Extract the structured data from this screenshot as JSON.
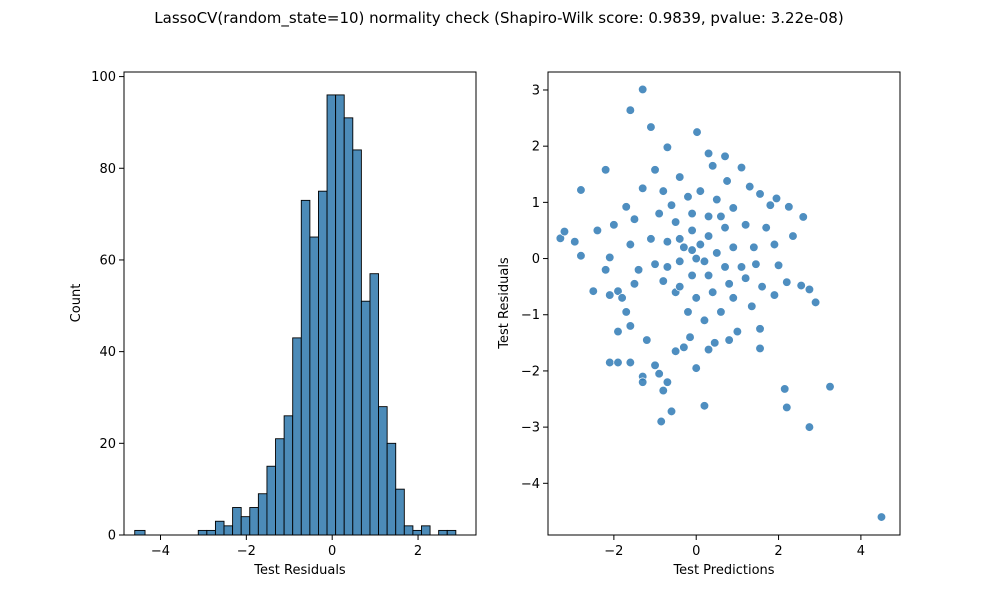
{
  "title": "LassoCV(random_state=10) normality check (Shapiro-Wilk score: 0.9839, pvalue: 3.22e-08)",
  "colors": {
    "bar": "#4c8bb8",
    "point": "#2f7ab5",
    "edge": "#000000"
  },
  "chart_data": [
    {
      "type": "bar",
      "subtype": "histogram",
      "xlabel": "Test Residuals",
      "ylabel": "Count",
      "xlim": [
        -4.85,
        3.35
      ],
      "ylim": [
        0,
        101
      ],
      "xticks": [
        -4,
        -2,
        0,
        2
      ],
      "yticks": [
        0,
        20,
        40,
        60,
        80,
        100
      ],
      "bins": [
        {
          "x0": -4.6,
          "x1": -4.36,
          "count": 1
        },
        {
          "x0": -3.12,
          "x1": -2.92,
          "count": 1
        },
        {
          "x0": -2.92,
          "x1": -2.72,
          "count": 1
        },
        {
          "x0": -2.72,
          "x1": -2.52,
          "count": 3
        },
        {
          "x0": -2.52,
          "x1": -2.32,
          "count": 2
        },
        {
          "x0": -2.32,
          "x1": -2.12,
          "count": 6
        },
        {
          "x0": -2.12,
          "x1": -1.92,
          "count": 4
        },
        {
          "x0": -1.92,
          "x1": -1.72,
          "count": 6
        },
        {
          "x0": -1.72,
          "x1": -1.52,
          "count": 9
        },
        {
          "x0": -1.52,
          "x1": -1.32,
          "count": 15
        },
        {
          "x0": -1.32,
          "x1": -1.12,
          "count": 21
        },
        {
          "x0": -1.12,
          "x1": -0.92,
          "count": 26
        },
        {
          "x0": -0.92,
          "x1": -0.72,
          "count": 43
        },
        {
          "x0": -0.72,
          "x1": -0.52,
          "count": 73
        },
        {
          "x0": -0.52,
          "x1": -0.32,
          "count": 65
        },
        {
          "x0": -0.32,
          "x1": -0.12,
          "count": 75
        },
        {
          "x0": -0.12,
          "x1": 0.08,
          "count": 96
        },
        {
          "x0": 0.08,
          "x1": 0.28,
          "count": 96
        },
        {
          "x0": 0.28,
          "x1": 0.48,
          "count": 91
        },
        {
          "x0": 0.48,
          "x1": 0.68,
          "count": 84
        },
        {
          "x0": 0.68,
          "x1": 0.88,
          "count": 51
        },
        {
          "x0": 0.88,
          "x1": 1.08,
          "count": 57
        },
        {
          "x0": 1.08,
          "x1": 1.28,
          "count": 28
        },
        {
          "x0": 1.28,
          "x1": 1.48,
          "count": 20
        },
        {
          "x0": 1.48,
          "x1": 1.68,
          "count": 10
        },
        {
          "x0": 1.68,
          "x1": 1.88,
          "count": 2
        },
        {
          "x0": 1.88,
          "x1": 2.08,
          "count": 1
        },
        {
          "x0": 2.08,
          "x1": 2.28,
          "count": 2
        },
        {
          "x0": 2.48,
          "x1": 2.68,
          "count": 1
        },
        {
          "x0": 2.68,
          "x1": 2.88,
          "count": 1
        }
      ]
    },
    {
      "type": "scatter",
      "xlabel": "Test Predictions",
      "ylabel": "Test Residuals",
      "xlim": [
        -3.6,
        4.95
      ],
      "ylim": [
        -4.92,
        3.32
      ],
      "xticks": [
        -2,
        0,
        2,
        4
      ],
      "yticks": [
        -4,
        -3,
        -2,
        -1,
        0,
        1,
        2,
        3
      ],
      "points": [
        [
          -1.3,
          3.01
        ],
        [
          -1.6,
          2.64
        ],
        [
          -1.1,
          2.34
        ],
        [
          0.02,
          2.25
        ],
        [
          -0.7,
          1.98
        ],
        [
          0.3,
          1.87
        ],
        [
          0.7,
          1.82
        ],
        [
          1.1,
          1.62
        ],
        [
          -2.8,
          1.22
        ],
        [
          -1.0,
          1.58
        ],
        [
          -2.2,
          1.58
        ],
        [
          1.95,
          1.07
        ],
        [
          2.6,
          0.74
        ],
        [
          2.25,
          0.92
        ],
        [
          2.35,
          0.4
        ],
        [
          -3.3,
          0.36
        ],
        [
          -3.2,
          0.48
        ],
        [
          -2.95,
          0.3
        ],
        [
          -2.8,
          0.05
        ],
        [
          -2.5,
          -0.58
        ],
        [
          -2.1,
          -0.65
        ],
        [
          -1.9,
          -0.58
        ],
        [
          -2.4,
          0.5
        ],
        [
          -2.0,
          0.6
        ],
        [
          -2.1,
          0.02
        ],
        [
          -2.2,
          -0.2
        ],
        [
          -1.9,
          -1.3
        ],
        [
          -2.1,
          -1.85
        ],
        [
          -1.9,
          -1.85
        ],
        [
          -1.6,
          -1.85
        ],
        [
          -1.3,
          -2.1
        ],
        [
          -1.3,
          -2.2
        ],
        [
          -1.0,
          -1.9
        ],
        [
          -0.9,
          -2.05
        ],
        [
          -0.7,
          -2.2
        ],
        [
          -0.8,
          -2.35
        ],
        [
          -0.85,
          -2.9
        ],
        [
          -0.6,
          -2.72
        ],
        [
          0.2,
          -2.62
        ],
        [
          2.15,
          -2.32
        ],
        [
          3.25,
          -2.28
        ],
        [
          2.2,
          -2.65
        ],
        [
          2.75,
          -3.0
        ],
        [
          4.5,
          -4.6
        ],
        [
          2.9,
          -0.78
        ],
        [
          2.75,
          -0.55
        ],
        [
          2.55,
          -0.48
        ],
        [
          2.2,
          -0.42
        ],
        [
          2.0,
          -0.12
        ],
        [
          1.9,
          -0.65
        ],
        [
          1.6,
          -0.5
        ],
        [
          1.35,
          -0.85
        ],
        [
          1.55,
          -1.25
        ],
        [
          1.55,
          -1.6
        ],
        [
          0.3,
          -1.62
        ],
        [
          0.0,
          -1.95
        ],
        [
          -0.3,
          -1.58
        ],
        [
          -0.5,
          -1.65
        ],
        [
          -0.15,
          -1.4
        ],
        [
          0.45,
          -1.5
        ],
        [
          0.8,
          -1.45
        ],
        [
          1.0,
          -1.3
        ],
        [
          -1.2,
          -1.45
        ],
        [
          -1.6,
          -1.2
        ],
        [
          -1.7,
          -0.95
        ],
        [
          -1.8,
          -0.7
        ],
        [
          -1.5,
          -0.45
        ],
        [
          -1.4,
          -0.2
        ],
        [
          -1.6,
          0.25
        ],
        [
          -1.5,
          0.7
        ],
        [
          -1.7,
          0.92
        ],
        [
          -1.3,
          1.25
        ],
        [
          -0.8,
          1.2
        ],
        [
          -0.4,
          1.45
        ],
        [
          0.4,
          1.65
        ],
        [
          0.75,
          1.38
        ],
        [
          1.3,
          1.28
        ],
        [
          1.55,
          1.15
        ],
        [
          1.8,
          0.95
        ],
        [
          1.7,
          0.55
        ],
        [
          1.9,
          0.25
        ],
        [
          1.45,
          -0.1
        ],
        [
          1.2,
          -0.35
        ],
        [
          0.9,
          -0.7
        ],
        [
          0.6,
          -0.95
        ],
        [
          0.2,
          -1.1
        ],
        [
          -0.2,
          -0.95
        ],
        [
          -0.5,
          -0.6
        ],
        [
          -0.8,
          -0.4
        ],
        [
          -1.0,
          -0.1
        ],
        [
          -1.1,
          0.35
        ],
        [
          -0.9,
          0.8
        ],
        [
          -0.6,
          0.95
        ],
        [
          -0.2,
          1.1
        ],
        [
          0.1,
          1.2
        ],
        [
          0.5,
          1.05
        ],
        [
          0.9,
          0.9
        ],
        [
          1.2,
          0.6
        ],
        [
          1.4,
          0.2
        ],
        [
          1.1,
          -0.15
        ],
        [
          0.8,
          -0.45
        ],
        [
          0.4,
          -0.6
        ],
        [
          0.0,
          -0.7
        ],
        [
          -0.4,
          -0.5
        ],
        [
          -0.7,
          -0.15
        ],
        [
          -0.7,
          0.3
        ],
        [
          -0.5,
          0.65
        ],
        [
          -0.1,
          0.8
        ],
        [
          0.3,
          0.75
        ],
        [
          0.7,
          0.55
        ],
        [
          0.9,
          0.2
        ],
        [
          0.7,
          -0.15
        ],
        [
          0.3,
          -0.3
        ],
        [
          -0.1,
          -0.3
        ],
        [
          -0.4,
          -0.05
        ],
        [
          -0.4,
          0.35
        ],
        [
          -0.1,
          0.5
        ],
        [
          0.3,
          0.4
        ],
        [
          0.5,
          0.1
        ],
        [
          0.2,
          -0.05
        ],
        [
          -0.1,
          0.15
        ],
        [
          0.1,
          0.25
        ],
        [
          0.0,
          0.0
        ],
        [
          0.6,
          0.75
        ],
        [
          -0.3,
          0.2
        ]
      ]
    }
  ]
}
